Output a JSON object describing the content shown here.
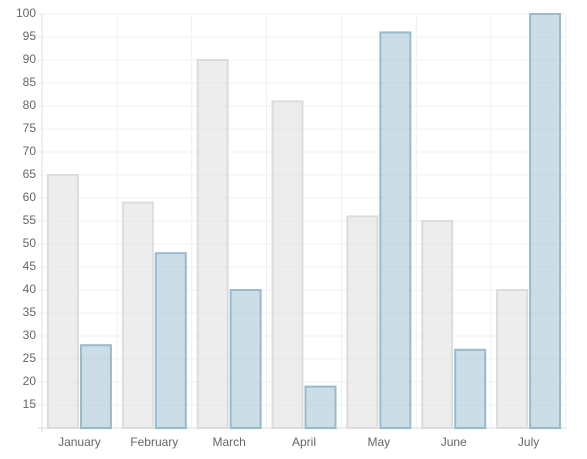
{
  "chart_data": {
    "type": "bar",
    "categories": [
      "January",
      "February",
      "March",
      "April",
      "May",
      "June",
      "July"
    ],
    "series": [
      {
        "color": "#dcdcdc",
        "values": [
          65,
          59,
          90,
          81,
          56,
          55,
          40
        ]
      },
      {
        "color": "#97bbcd",
        "values": [
          28,
          48,
          40,
          19,
          96,
          27,
          100
        ]
      }
    ],
    "ylim": [
      10,
      100
    ],
    "yticks": [
      15,
      20,
      25,
      30,
      35,
      40,
      45,
      50,
      55,
      60,
      65,
      70,
      75,
      80,
      85,
      90,
      95,
      100
    ],
    "grid": true
  }
}
